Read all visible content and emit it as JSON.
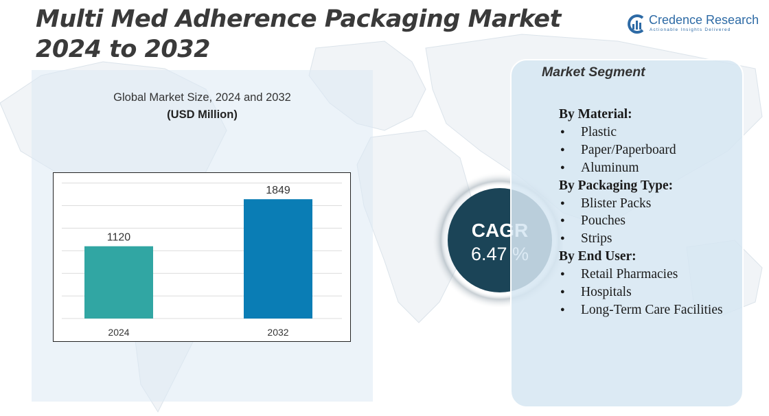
{
  "title_lines": [
    "Multi Med Adherence Packaging Market",
    "2024 to 2032"
  ],
  "logo": {
    "name": "Credence Research",
    "tagline": "Actionable Insights Delivered"
  },
  "chart": {
    "title": "Global Market Size,  2024 and 2032",
    "unit": "(USD Million)"
  },
  "chart_data": {
    "type": "bar",
    "categories": [
      "2024",
      "2032"
    ],
    "values": [
      1120,
      1849
    ],
    "colors": [
      "#31a6a3",
      "#0a7db5"
    ],
    "ylim": [
      0,
      2100
    ],
    "grid": true,
    "legend": "none"
  },
  "cagr": {
    "label": "CAGR",
    "value": "6.47 %"
  },
  "segments": {
    "heading": "Market Segment",
    "groups": [
      {
        "title": "By Material:",
        "items": [
          "Plastic",
          "Paper/Paperboard",
          "Aluminum"
        ]
      },
      {
        "title": "By Packaging Type:",
        "items": [
          "Blister Packs",
          "Pouches",
          "Strips"
        ]
      },
      {
        "title": "By End User:",
        "items": [
          "Retail Pharmacies",
          "Hospitals",
          "Long-Term Care Facilities"
        ]
      }
    ]
  },
  "colors": {
    "title": "#3a3a3a",
    "brand": "#2d6aa5",
    "cagr_circle": "#1b4457",
    "panel": "#dceaf4"
  }
}
